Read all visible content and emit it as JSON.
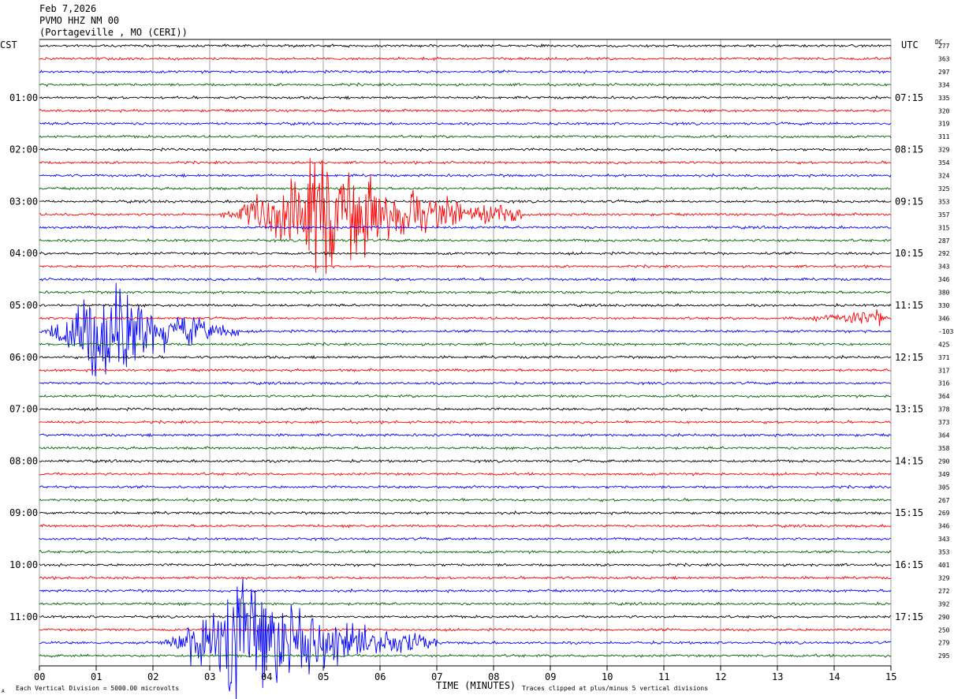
{
  "header": {
    "date": "Feb 7,2026",
    "station": "PVMO HHZ NM 00",
    "location": "(Portageville , MO (CERI))"
  },
  "labels": {
    "left_tz": "CST",
    "right_tz": "UTC",
    "dc": "DC",
    "x_axis_title": "TIME (MINUTES)",
    "footer_left": "Each Vertical Division = 5000.00 microvolts",
    "footer_right": "Traces clipped at plus/minus 5 vertical divisions",
    "corner_mark": "A"
  },
  "colors": {
    "trace_cycle": [
      "#000000",
      "#ff0000",
      "#0000ff",
      "#006400"
    ],
    "grid": "#888888"
  },
  "chart_data": {
    "type": "line",
    "title": "",
    "xlabel": "TIME (MINUTES)",
    "xlim": [
      0,
      15
    ],
    "x_ticks": [
      "00",
      "01",
      "02",
      "03",
      "04",
      "05",
      "06",
      "07",
      "08",
      "09",
      "10",
      "11",
      "12",
      "13",
      "14",
      "15"
    ],
    "row_minutes": 15,
    "left_hour_labels": [
      "01:00",
      "02:00",
      "03:00",
      "04:00",
      "05:00",
      "06:00",
      "07:00",
      "08:00",
      "09:00",
      "10:00",
      "11:00"
    ],
    "right_hour_labels": [
      "07:15",
      "08:15",
      "09:15",
      "10:15",
      "11:15",
      "12:15",
      "13:15",
      "14:15",
      "15:15",
      "16:15",
      "17:15"
    ],
    "dc_offsets": [
      "277",
      "363",
      "297",
      "334",
      "335",
      "320",
      "319",
      "311",
      "329",
      "354",
      "324",
      "325",
      "353",
      "357",
      "315",
      "287",
      "292",
      "343",
      "346",
      "380",
      "330",
      "346",
      "-103",
      "425",
      "371",
      "317",
      "316",
      "364",
      "378",
      "373",
      "364",
      "358",
      "290",
      "349",
      "305",
      "267",
      "269",
      "346",
      "343",
      "353",
      "401",
      "329",
      "272",
      "392",
      "290",
      "250",
      "279",
      "295"
    ],
    "events": [
      {
        "row": 13,
        "start_min": 3.0,
        "end_min": 8.5,
        "peak_min": 5.0,
        "amp": 11,
        "clipped": true
      },
      {
        "row": 22,
        "start_min": 0.0,
        "end_min": 3.5,
        "peak_min": 1.0,
        "amp": 10,
        "clipped": true
      },
      {
        "row": 21,
        "start_min": 13.0,
        "end_min": 15.0,
        "peak_min": 14.8,
        "amp": 1.6,
        "clipped": false
      },
      {
        "row": 46,
        "start_min": 2.0,
        "end_min": 7.0,
        "peak_min": 3.5,
        "amp": 12,
        "clipped": true
      }
    ]
  }
}
